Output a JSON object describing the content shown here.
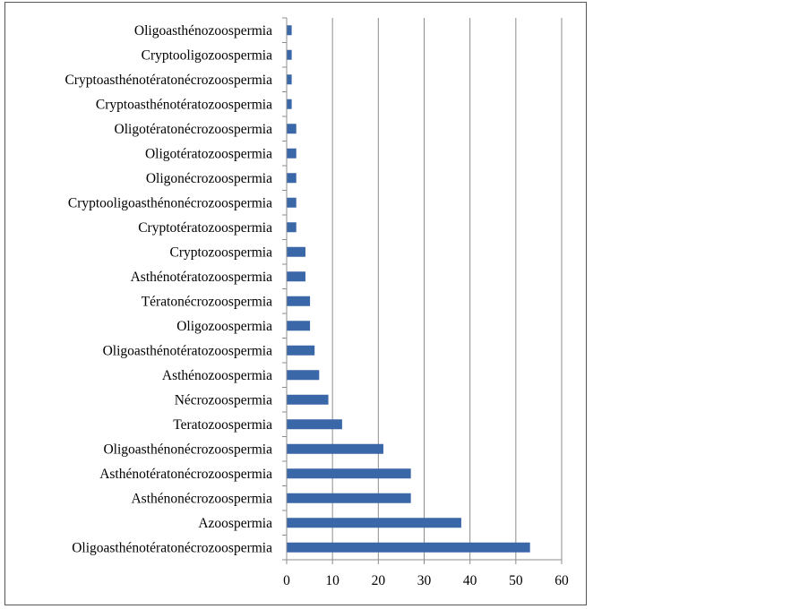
{
  "chart_data": {
    "type": "bar",
    "orientation": "horizontal",
    "categories": [
      "Oligoasthénotératonécrozoospermia",
      "Azoospermia",
      "Asthénonécrozoospermia",
      "Asthénotératonécrozoospermia",
      "Oligoasthénonécrozoospermia",
      "Teratozoospermia",
      "Nécrozoospermia",
      "Asthénozoospermia",
      "Oligoasthénotératozoospermia",
      "Oligozoospermia",
      "Tératonécrozoospermia",
      "Asthénotératozoospermia",
      "Cryptozoospermia",
      "Cryptotératozoospermia",
      "Cryptooligoasthénonécrozoospermia",
      "Oligonécrozoospermia",
      "Oligotératozoospermia",
      "Oligotératonécrozoospermia",
      "Cryptoasthénotératozoospermia",
      "Cryptoasthénotératonécrozoospermia",
      "Cryptooligozoospermia",
      "Oligoasthénozoospermia"
    ],
    "values": [
      53,
      38,
      27,
      27,
      21,
      12,
      9,
      7,
      6,
      5,
      5,
      4,
      4,
      2,
      2,
      2,
      2,
      2,
      1,
      1,
      1,
      1
    ],
    "xlim": [
      0,
      60
    ],
    "xticks": [
      0,
      10,
      20,
      30,
      40,
      50,
      60
    ],
    "grid": "vertical",
    "bar_color": "#3a67a8",
    "title": "",
    "xlabel": "",
    "ylabel": ""
  }
}
